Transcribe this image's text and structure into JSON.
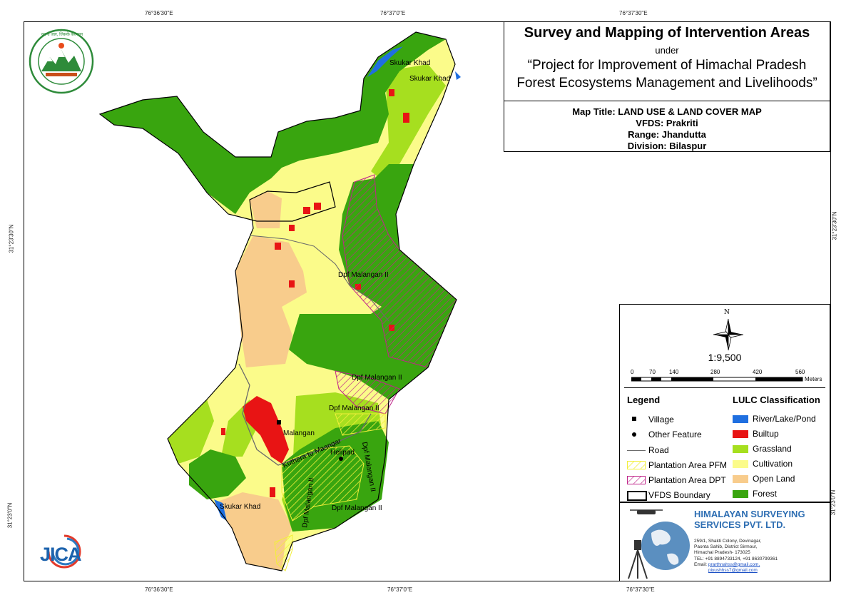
{
  "coords": {
    "top": [
      "76°36'30\"E",
      "76°37'0\"E",
      "76°37'30\"E"
    ],
    "bottom": [
      "76°36'30\"E",
      "76°37'0\"E",
      "76°37'30\"E"
    ],
    "left": [
      "31°23'30\"N",
      "31°23'0\"N"
    ],
    "right": [
      "31°23'30\"N",
      "31°23'0\"N"
    ]
  },
  "title": {
    "main": "Survey and Mapping of Intervention Areas",
    "under": "under",
    "project_line1": "“Project for Improvement of Himachal Pradesh",
    "project_line2": "Forest Ecosystems Management and Livelihoods”",
    "map_title": "Map Title: LAND USE & LAND COVER MAP",
    "vfds": "VFDS: Prakriti",
    "range": "Range: Jhandutta",
    "division": "Division: Bilaspur"
  },
  "compass": {
    "north": "N"
  },
  "scale": {
    "ratio": "1:9,500",
    "ticks": [
      "0",
      "70",
      "140",
      "280",
      "420",
      "560"
    ],
    "unit": "Meters"
  },
  "legend": {
    "heading": "Legend",
    "items": [
      "Village",
      "Other Feature",
      "Road",
      "Plantation Area PFM",
      "Plantation Area DPT",
      "VFDS Boundary"
    ]
  },
  "lulc": {
    "heading": "LULC Classification",
    "classes": [
      {
        "label": "River/Lake/Pond",
        "color": "#1f6fe0"
      },
      {
        "label": "Builtup",
        "color": "#e81414"
      },
      {
        "label": "Grassland",
        "color": "#a6df1f"
      },
      {
        "label": "Cultivation",
        "color": "#fbfb8a"
      },
      {
        "label": "Open Land",
        "color": "#f8cc8c"
      },
      {
        "label": "Forest",
        "color": "#39a50f"
      }
    ]
  },
  "map_labels": {
    "skukar_1": "Skukar Khad",
    "skukar_2": "Skukar Khad",
    "skukar_3": "Skukar Khad",
    "dpf_1": "Dpf Malangan II",
    "dpf_2": "Dpf Malangan II",
    "dpf_3": "Dpf Malangan II",
    "dpf_4": "Dpf Malangan II",
    "dpf_5": "Dpf Malangan II",
    "dpf_6": "Dpf Malangan II",
    "malangan": "Malangan",
    "road": "Kuthera to Maangar",
    "helipad": "Helipad"
  },
  "company": {
    "name_line1": "HIMALAYAN SURVEYING",
    "name_line2": "SERVICES PVT. LTD.",
    "addr1": "259/1, Shakti Colony, Devinagar,",
    "addr2": "Paonta Sahib, District Sirmour,",
    "addr3": "Himachal Pradesh- 173025",
    "tel": "TEL: +91 8894733124, +91 8630799361",
    "email_label": "Email:",
    "email1": "prarthnahss@gmail.com,",
    "email2": "piyushhss7@gmail.com"
  },
  "logos": {
    "forest_dept_text": "वन वै जल, जिसके कल्याण",
    "jica": "JICA"
  }
}
